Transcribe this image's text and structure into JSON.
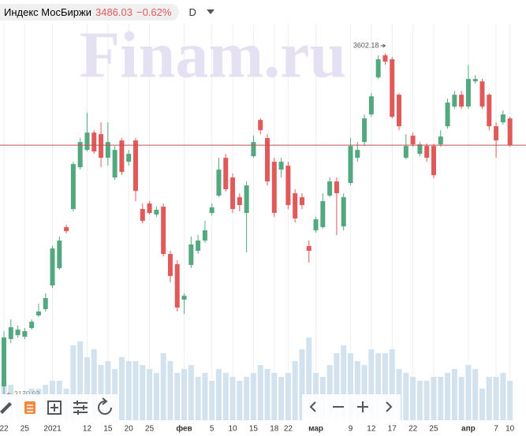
{
  "header": {
    "title": "Индекс МосБиржи",
    "change": "−0.62%",
    "interval": "D"
  },
  "watermark": "Finam.ru",
  "chart_data": {
    "type": "candlestick",
    "categories": [
      null,
      "22",
      null,
      null,
      "25",
      null,
      null,
      null,
      "2021",
      null,
      null,
      null,
      null,
      "12",
      null,
      null,
      "15",
      null,
      null,
      "20",
      null,
      null,
      "25",
      null,
      null,
      null,
      null,
      "фев",
      null,
      null,
      null,
      "5",
      null,
      null,
      "10",
      null,
      null,
      "15",
      null,
      null,
      "18",
      null,
      "22",
      null,
      null,
      null,
      "мар",
      null,
      null,
      null,
      null,
      "9",
      null,
      null,
      "12",
      null,
      null,
      "17",
      null,
      null,
      "22",
      null,
      null,
      "25",
      null,
      null,
      null,
      null,
      "апр",
      null,
      null,
      null,
      "7",
      null,
      "10"
    ],
    "open": [
      3175,
      3180,
      3240,
      3245,
      3243,
      3254,
      3270,
      3278,
      3308,
      3330,
      3382,
      3405,
      3458,
      3480,
      3502,
      3500,
      3470,
      3445,
      3492,
      3465,
      3492,
      3405,
      3412,
      3398,
      3408,
      3348,
      3335,
      3290,
      3334,
      3352,
      3365,
      3400,
      3422,
      3470,
      3445,
      3420,
      3400,
      3472,
      3518,
      3495,
      3465,
      3455,
      3460,
      3425,
      3420,
      3358,
      3378,
      3382,
      3422,
      3440,
      3383,
      3438,
      3470,
      3490,
      3525,
      3572,
      3600,
      3595,
      3550,
      3470,
      3498,
      3475,
      3485,
      3485,
      3487,
      3510,
      3535,
      3550,
      3535,
      3567,
      3567,
      3550,
      3510,
      3515,
      3520
    ],
    "high": [
      3220,
      3250,
      3265,
      3257,
      3254,
      3265,
      3285,
      3298,
      3358,
      3370,
      3385,
      3465,
      3495,
      3527,
      3505,
      3515,
      3515,
      3485,
      3495,
      3480,
      3495,
      3412,
      3415,
      3408,
      3412,
      3352,
      3340,
      3298,
      3370,
      3372,
      3390,
      3412,
      3470,
      3475,
      3450,
      3425,
      3440,
      3498,
      3520,
      3500,
      3470,
      3470,
      3465,
      3430,
      3425,
      3365,
      3395,
      3425,
      3445,
      3445,
      3425,
      3495,
      3490,
      3525,
      3552,
      3600,
      3602.18,
      3598,
      3552,
      3500,
      3502,
      3490,
      3488,
      3488,
      3505,
      3545,
      3555,
      3555,
      3588,
      3575,
      3570,
      3552,
      3515,
      3530,
      3522
    ],
    "low": [
      3172,
      3170.03,
      3235,
      3242,
      3240,
      3252,
      3268,
      3275,
      3305,
      3328,
      3374,
      3402,
      3455,
      3478,
      3475,
      3458,
      3460,
      3442,
      3448,
      3460,
      3415,
      3387,
      3398,
      3395,
      3345,
      3312,
      3275,
      3272,
      3330,
      3348,
      3362,
      3397,
      3420,
      3427,
      3400,
      3402,
      3350,
      3470,
      3500,
      3435,
      3395,
      3445,
      3405,
      3388,
      3405,
      3337,
      3375,
      3380,
      3420,
      3372,
      3378,
      3435,
      3465,
      3485,
      3522,
      3570,
      3588,
      3520,
      3505,
      3468,
      3484,
      3472,
      3465,
      3444,
      3484,
      3507,
      3532,
      3532,
      3532,
      3564,
      3532,
      3505,
      3470,
      3512,
      3484
    ],
    "close": [
      3210,
      3242,
      3255,
      3252,
      3250,
      3262,
      3275,
      3292,
      3355,
      3365,
      3377,
      3462,
      3490,
      3502,
      3478,
      3470,
      3490,
      3480,
      3452,
      3475,
      3428,
      3390,
      3400,
      3404,
      3348,
      3320,
      3280,
      3295,
      3360,
      3365,
      3378,
      3407,
      3455,
      3430,
      3405,
      3410,
      3435,
      3490,
      3505,
      3440,
      3400,
      3465,
      3410,
      3393,
      3410,
      3352,
      3392,
      3415,
      3440,
      3425,
      3420,
      3485,
      3480,
      3520,
      3548,
      3595,
      3592,
      3522,
      3510,
      3485,
      3487,
      3487,
      3470,
      3448,
      3497,
      3540,
      3550,
      3535,
      3570,
      3570,
      3535,
      3510,
      3492,
      3525,
      3486.03
    ],
    "volume": [
      40,
      50,
      45,
      30,
      35,
      40,
      40,
      45,
      50,
      50,
      40,
      95,
      100,
      80,
      90,
      70,
      75,
      65,
      80,
      75,
      75,
      70,
      65,
      60,
      85,
      75,
      60,
      65,
      70,
      55,
      60,
      50,
      65,
      60,
      55,
      50,
      55,
      60,
      70,
      65,
      60,
      55,
      60,
      75,
      90,
      105,
      60,
      55,
      70,
      85,
      95,
      85,
      75,
      70,
      90,
      85,
      85,
      90,
      65,
      60,
      55,
      50,
      50,
      55,
      55,
      60,
      65,
      55,
      70,
      65,
      40,
      55,
      55,
      60,
      50
    ],
    "up_color": "#53a87f",
    "down_color": "#e05a5a",
    "volume_color": "#d3e2ef",
    "last_line_color": "#c0504d"
  }
}
